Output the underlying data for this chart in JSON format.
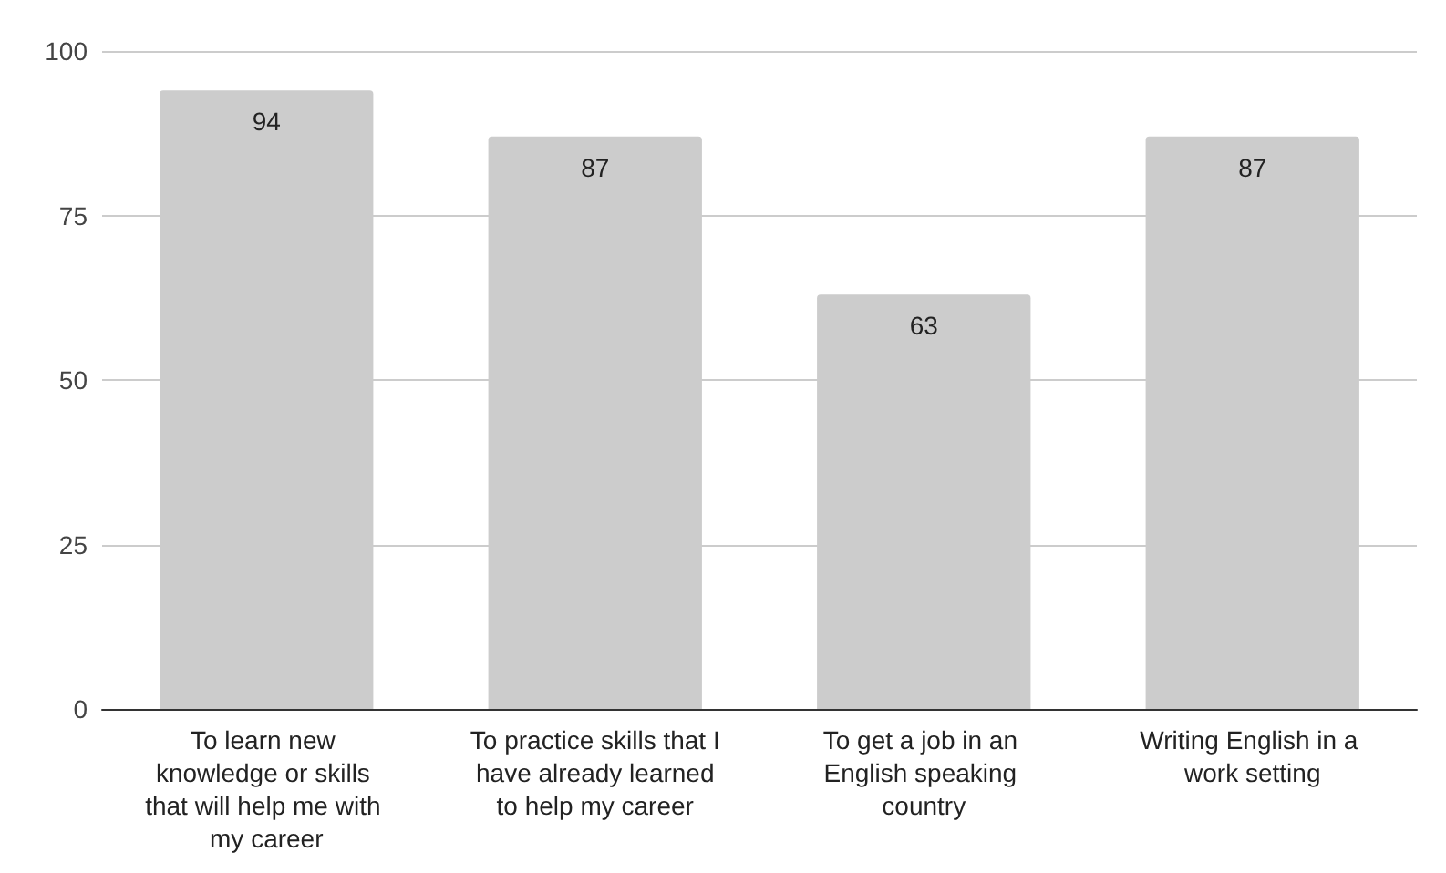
{
  "chart_data": {
    "type": "bar",
    "categories": [
      "To learn new knowledge or skills that will help me with my career",
      "To practice skills that I have already learned to help my career",
      "To get a job in an English speaking country",
      "Writing English in a work setting"
    ],
    "values": [
      94,
      87,
      63,
      87
    ],
    "color": "#cccccc",
    "ylim": [
      0,
      100
    ],
    "yticks": [
      0,
      25,
      50,
      75,
      100
    ],
    "grid": "y",
    "data_labels": true
  }
}
